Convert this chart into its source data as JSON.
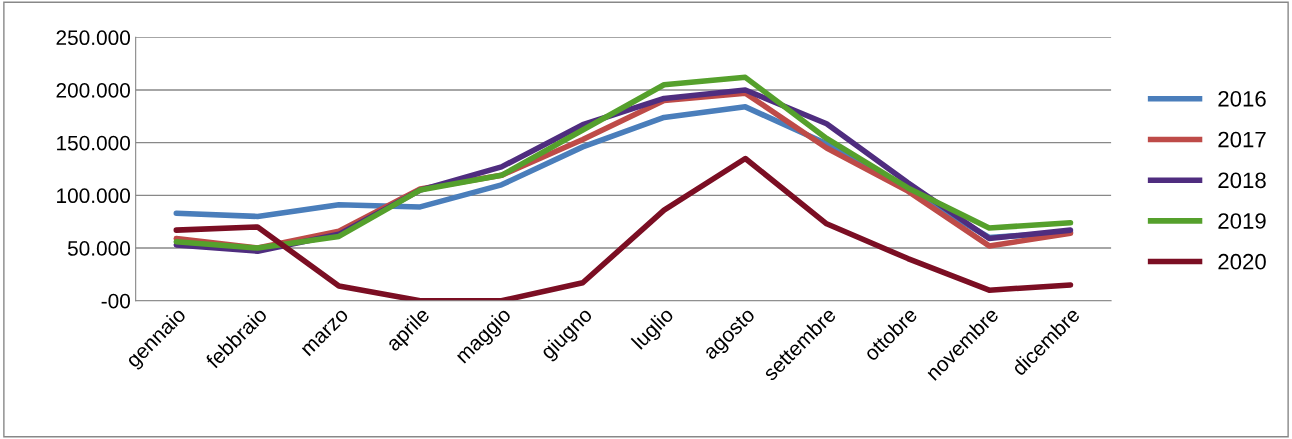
{
  "chart_data": {
    "type": "line",
    "categories": [
      "gennaio",
      "febbraio",
      "marzo",
      "aprile",
      "maggio",
      "giugno",
      "luglio",
      "agosto",
      "settembre",
      "ottobre",
      "novembre",
      "dicembre"
    ],
    "series": [
      {
        "name": "2016",
        "color": "#4a7ebb",
        "values": [
          83000,
          80000,
          91000,
          89000,
          110000,
          146000,
          174000,
          184000,
          149000,
          105000,
          60000,
          65000
        ]
      },
      {
        "name": "2017",
        "color": "#be4b48",
        "values": [
          59000,
          50000,
          66000,
          106000,
          119000,
          153000,
          190000,
          197000,
          145000,
          104000,
          52000,
          64000
        ]
      },
      {
        "name": "2018",
        "color": "#4f2d7f",
        "values": [
          53000,
          47000,
          63000,
          105000,
          127000,
          167000,
          192000,
          200000,
          168000,
          112000,
          59000,
          67000
        ]
      },
      {
        "name": "2019",
        "color": "#55a02c",
        "values": [
          56000,
          50000,
          61000,
          105000,
          119000,
          162000,
          205000,
          212000,
          154000,
          107000,
          69000,
          74000
        ]
      },
      {
        "name": "2020",
        "color": "#7b0e23",
        "values": [
          67000,
          70000,
          14000,
          0,
          0,
          17000,
          86000,
          135000,
          73000,
          40000,
          10000,
          15000
        ]
      }
    ],
    "ylim": [
      0,
      250000
    ],
    "yticks": [
      {
        "value": 0,
        "label": "-00"
      },
      {
        "value": 50000,
        "label": "50.000"
      },
      {
        "value": 100000,
        "label": "100.000"
      },
      {
        "value": 150000,
        "label": "150.000"
      },
      {
        "value": 200000,
        "label": "200.000"
      },
      {
        "value": 250000,
        "label": "250.000"
      }
    ],
    "grid": "y",
    "legend": "right",
    "marker": "none",
    "line_style": "solid"
  }
}
